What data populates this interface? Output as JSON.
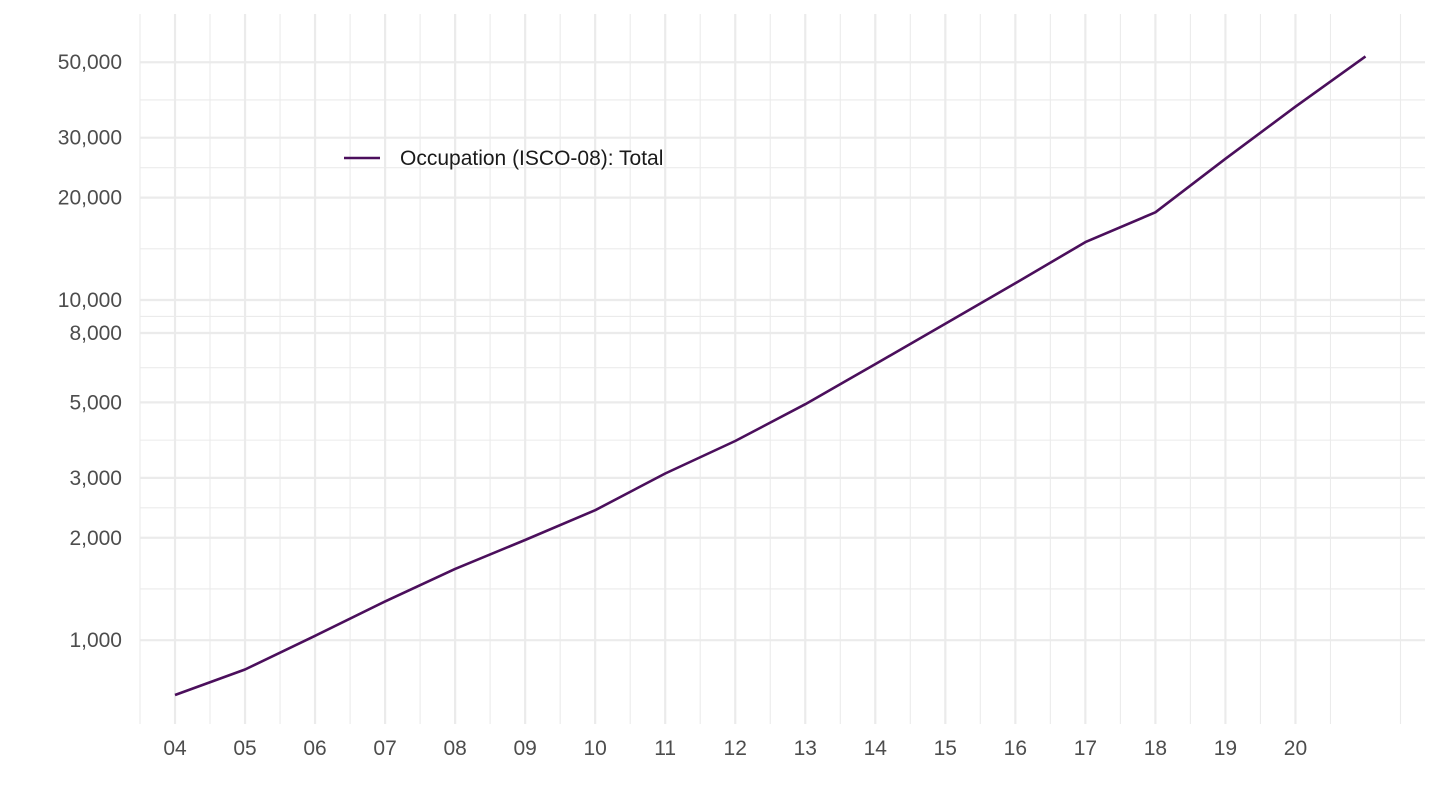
{
  "chart_data": {
    "type": "line",
    "title": "",
    "xlabel": "",
    "ylabel": "",
    "x": [
      2004,
      2005,
      2006,
      2007,
      2008,
      2009,
      2010,
      2011,
      2012,
      2013,
      2014,
      2015,
      2016,
      2017,
      2018,
      2019,
      2020,
      2021
    ],
    "x_tick_labels": [
      {
        "year": 2004,
        "label": "04"
      },
      {
        "year": 2005,
        "label": "05"
      },
      {
        "year": 2006,
        "label": "06"
      },
      {
        "year": 2007,
        "label": "07"
      },
      {
        "year": 2008,
        "label": "08"
      },
      {
        "year": 2009,
        "label": "09"
      },
      {
        "year": 2010,
        "label": "10"
      },
      {
        "year": 2011,
        "label": "11"
      },
      {
        "year": 2012,
        "label": "12"
      },
      {
        "year": 2013,
        "label": "13"
      },
      {
        "year": 2014,
        "label": "14"
      },
      {
        "year": 2015,
        "label": "15"
      },
      {
        "year": 2016,
        "label": "16"
      },
      {
        "year": 2017,
        "label": "17"
      },
      {
        "year": 2018,
        "label": "18"
      },
      {
        "year": 2019,
        "label": "19"
      },
      {
        "year": 2020,
        "label": "20"
      }
    ],
    "y_scale": "log",
    "y_ticks": [
      {
        "value": 1000,
        "label": "1,000"
      },
      {
        "value": 2000,
        "label": "2,000"
      },
      {
        "value": 3000,
        "label": "3,000"
      },
      {
        "value": 5000,
        "label": "5,000"
      },
      {
        "value": 8000,
        "label": "8,000"
      },
      {
        "value": 10000,
        "label": "10,000"
      },
      {
        "value": 20000,
        "label": "20,000"
      },
      {
        "value": 30000,
        "label": "30,000"
      },
      {
        "value": 50000,
        "label": "50,000"
      }
    ],
    "xlim": [
      2003.5,
      2021.85
    ],
    "ylim": [
      567,
      69300
    ],
    "grid": true,
    "legend_position": "top-left",
    "series": [
      {
        "name": "Occupation (ISCO-08): Total",
        "color": "#4b0f5c",
        "values": [
          690,
          820,
          1030,
          1300,
          1620,
          1970,
          2410,
          3090,
          3850,
          4940,
          6480,
          8520,
          11200,
          14800,
          18100,
          26000,
          37000,
          52000
        ]
      }
    ]
  }
}
